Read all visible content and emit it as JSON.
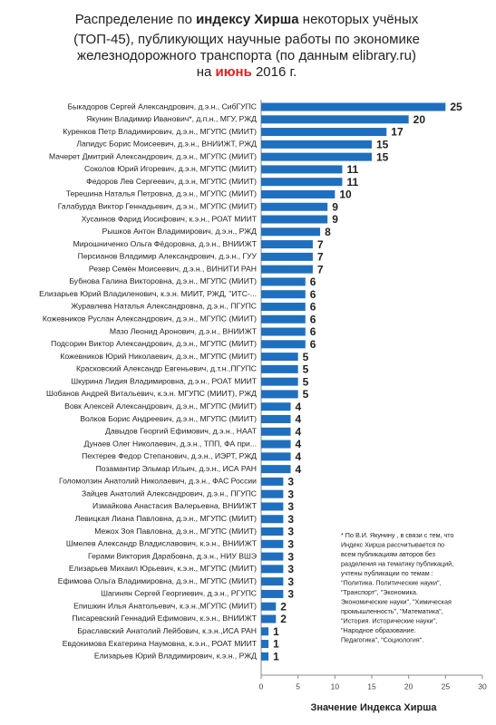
{
  "chart_data": {
    "type": "hbar",
    "title_lines": [
      [
        "Распределение  по ",
        "индексу Хирша",
        " некоторых учёных"
      ],
      [
        "(ТОП-45), публикующих  научные работы по экономике"
      ],
      [
        "железнодорожного транспорта (по данным elibrary.ru)"
      ],
      [
        "на ",
        "июнь",
        " 2016 г."
      ]
    ],
    "x_label": "Значение Индекса Хирша",
    "categories": [
      "Быкадоров Сергей Александрович, д.э.н., СибГУПС",
      "Якунин Владимир Иванович*, д.п.н., МГУ, РЖД",
      "Куренков Петр Владимирович, д.э.н., МГУПС (МИИТ)",
      "Лапидус Борис Моисеевич, д.э.н., ВНИИЖТ, РЖД",
      "Мачерет Дмитрий Александрович, д.э.н., МГУПС (МИИТ)",
      "Соколов Юрий Игоревич, д.э.н, МГУПС (МИИТ)",
      "Федоров Лев Сергеевич, д.э.н, МГУПС (МИИТ)",
      "Терешина Наталья Петровна, д.э.н., МГУПС (МИИТ)",
      "Галабурда Виктор Геннадьевич, д.э.н., МГУПС (МИИТ)",
      "Хусаинов Фарид Иосифович, к.э.н., РОАТ МИИТ",
      "Рышков Антон Владимирович, д.э.н., РЖД",
      "Мирошниченко Ольга Фёдоровна, д.э.н., ВНИИЖТ",
      "Персианов Владимир Александрович, д.э.н., ГУУ",
      "Резер Семён Моисеевич, д.э.н., ВИНИТИ РАН",
      "Бубнова Галина Викторовна, д.э.н., МГУПС (МИИТ)",
      "Елизарьев Юрий Владиленович, к.э.н. МИИТ, РЖД, \"ИТС-...",
      "Журавлева Наталья Александровна, д.э.н., ПГУПС",
      "Кожевников Руслан Александрович, д.э.н., МГУПС (МИИТ)",
      "Мазо Леонид Аронович, д.э.н., ВНИИЖТ",
      "Подсорин Виктор Александрович, д.э.н., МГУПС (МИИТ)",
      "Кожевников Юрий Николаевич, д.э.н., МГУПС (МИИТ)",
      "Красковский Александр Евгеньевич, д.т.н.,ПГУПС",
      "Шкурина Лидия Владимировна, д.э.н., РОАТ МИИТ",
      "Шобанов Андрей Витальевич, к.э.н. МГУПС (МИИТ), РЖД",
      "Вовк Алексей Александрович, д.э.н., МГУПС (МИИТ)",
      "Волков Борис Андреевич, д.э.н., МГУПС (МИИТ)",
      "Давыдов Георгий Ефимович, д.э.н., НААТ",
      "Дунаев Олег Николаевич, д.э.н., ТПП, ФА при...",
      "Пехтерев Федор Степанович, д.э.н., ИЭРТ, РЖД",
      "Позамантир Эльмар Ильич, д.э.н., ИСА РАН",
      "Голомолзин Анатолий Николаевич, д.э.н., ФАС России",
      "Зайцев Анатолий Александрович, д.э.н., ПГУПС",
      "Измайкова Анастасия Валерьевна, ВНИИЖТ",
      "Левицкая Лиана Павловна, д.э.н., МГУПС (МИИТ)",
      "Межох Зоя Павловна, д.э.н., МГУПС (МИИТ)",
      "Шмелев Александр Владиславович, к.э.н., ВНИИЖТ",
      "Герами Виктория Дарабовна, д.э.н., НИУ ВШЭ",
      "Елизарьев Михаил Юрьевич, к.э.н., МГУПС (МИИТ)",
      "Ефимова Ольга Владимировна, д.э.н., МГУПС (МИИТ)",
      "Шагинян Сергей Георгиевич, д.э.н., РГУПС",
      "Епишкин Илья Анатольевич, к.э.н.,МГУПС (МИИТ)",
      "Писаревский Геннадий Ефимович, к.э.н., ВНИИЖТ",
      "Браславский Анатолий Лейбович, к.э.н.,ИСА РАН",
      "Евдокимова Екатерина Наумовна, к.э.н., РОАТ МИИТ",
      "Елизарьев Юрий Владимирович, к.э.н., РЖД"
    ],
    "values": [
      25,
      20,
      17,
      15,
      15,
      11,
      11,
      10,
      9,
      9,
      8,
      7,
      7,
      7,
      6,
      6,
      6,
      6,
      6,
      6,
      5,
      5,
      5,
      5,
      4,
      4,
      4,
      4,
      4,
      4,
      3,
      3,
      3,
      3,
      3,
      3,
      3,
      3,
      3,
      3,
      2,
      2,
      1,
      1,
      1
    ],
    "color": "#1f6fbf",
    "xlim": [
      0,
      30
    ],
    "xticks": [
      0,
      5,
      10,
      15,
      20,
      25,
      30
    ],
    "footnote_lines": [
      "* По В.И. Якунину , в связи с тем, что",
      "Индекс Хирша рассчитывается по",
      "всем публикациям авторов без",
      "разделения на тематику публикаций,",
      "учтены публикации по темам :",
      "\"Политика. Политические науки\",",
      "\"Транспорт\", \"Экономика.",
      "Экономические науки\", \"Химическая",
      "промышленность\", \"Математика\",",
      "\"История. Исторические науки\",",
      "\"Народное образование.",
      "Педагогика\", \"Социология\"."
    ]
  }
}
